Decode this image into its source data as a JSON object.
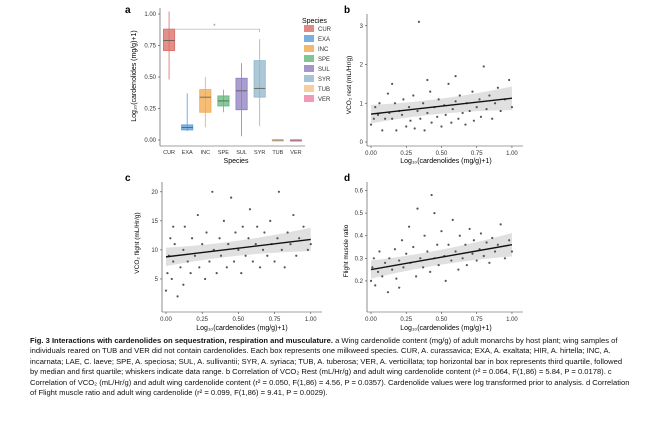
{
  "chart_data": [
    {
      "panel": "a",
      "type": "box",
      "xlabel": "Species",
      "ylabel": "Log10(cardenolides (mg/g)+1)",
      "ylim": [
        0,
        1.0
      ],
      "yticks": [
        "0.00",
        "0.25",
        "0.50",
        "0.75",
        "1.00"
      ],
      "categories": [
        "CUR",
        "EXA",
        "INC",
        "SPE",
        "SUL",
        "SYR",
        "TUB",
        "VER"
      ],
      "legend_title": "Species",
      "legend_position": "right",
      "colors": [
        "#d96b63",
        "#5b9bd5",
        "#f0a84a",
        "#5fb878",
        "#8d7cc0",
        "#8fb6c9",
        "#f2c38a",
        "#ef7fa8"
      ],
      "boxes": [
        {
          "min": 0.48,
          "q1": 0.71,
          "median": 0.79,
          "q3": 0.88,
          "max": 1.02
        },
        {
          "min": 0.07,
          "q1": 0.08,
          "median": 0.1,
          "q3": 0.12,
          "max": 0.37
        },
        {
          "min": 0.1,
          "q1": 0.22,
          "median": 0.34,
          "q3": 0.4,
          "max": 0.5
        },
        {
          "min": 0.22,
          "q1": 0.27,
          "median": 0.31,
          "q3": 0.35,
          "max": 0.4
        },
        {
          "min": 0.03,
          "q1": 0.24,
          "median": 0.39,
          "q3": 0.49,
          "max": 0.61
        },
        {
          "min": 0.11,
          "q1": 0.34,
          "median": 0.41,
          "q3": 0.63,
          "max": 0.8
        },
        {
          "min": 0.0,
          "q1": 0.0,
          "median": 0.0,
          "q3": 0.0,
          "max": 0.0
        },
        {
          "min": 0.0,
          "q1": 0.0,
          "median": 0.0,
          "q3": 0.0,
          "max": 0.0
        }
      ],
      "significance_bracket": {
        "from": "CUR",
        "to": "SYR",
        "y": 0.88,
        "label": "*"
      }
    },
    {
      "panel": "b",
      "type": "scatter",
      "xlabel": "Log10(cardenolides (mg/g)+1)",
      "ylabel": "VCO2 rest (mL/Hr/g)",
      "xlim": [
        0,
        1.05
      ],
      "ylim": [
        0,
        3.2
      ],
      "xticks": [
        "0.00",
        "0.25",
        "0.50",
        "0.75",
        "1.00"
      ],
      "yticks": [
        "0",
        "1",
        "2",
        "3"
      ],
      "trend": {
        "x": [
          0,
          1.0
        ],
        "y": [
          0.72,
          1.13
        ]
      },
      "points": [
        [
          0.0,
          0.45
        ],
        [
          0.02,
          0.6
        ],
        [
          0.03,
          0.9
        ],
        [
          0.05,
          0.7
        ],
        [
          0.06,
          1.0
        ],
        [
          0.08,
          0.3
        ],
        [
          0.1,
          0.6
        ],
        [
          0.12,
          1.25
        ],
        [
          0.13,
          0.75
        ],
        [
          0.15,
          0.6
        ],
        [
          0.17,
          1.0
        ],
        [
          0.18,
          0.3
        ],
        [
          0.2,
          0.8
        ],
        [
          0.22,
          0.7
        ],
        [
          0.23,
          1.1
        ],
        [
          0.25,
          0.4
        ],
        [
          0.27,
          0.9
        ],
        [
          0.28,
          0.55
        ],
        [
          0.3,
          1.2
        ],
        [
          0.31,
          0.35
        ],
        [
          0.33,
          0.8
        ],
        [
          0.34,
          3.1
        ],
        [
          0.35,
          0.6
        ],
        [
          0.37,
          1.0
        ],
        [
          0.38,
          0.3
        ],
        [
          0.4,
          0.75
        ],
        [
          0.42,
          1.3
        ],
        [
          0.43,
          0.5
        ],
        [
          0.45,
          0.9
        ],
        [
          0.47,
          0.65
        ],
        [
          0.48,
          1.1
        ],
        [
          0.5,
          0.4
        ],
        [
          0.52,
          0.95
        ],
        [
          0.53,
          0.7
        ],
        [
          0.55,
          1.5
        ],
        [
          0.57,
          0.5
        ],
        [
          0.58,
          0.85
        ],
        [
          0.6,
          1.05
        ],
        [
          0.62,
          0.6
        ],
        [
          0.63,
          1.2
        ],
        [
          0.65,
          0.75
        ],
        [
          0.67,
          0.45
        ],
        [
          0.68,
          1.0
        ],
        [
          0.7,
          0.8
        ],
        [
          0.72,
          1.3
        ],
        [
          0.73,
          0.55
        ],
        [
          0.75,
          0.9
        ],
        [
          0.77,
          1.1
        ],
        [
          0.78,
          0.65
        ],
        [
          0.8,
          1.95
        ],
        [
          0.82,
          0.85
        ],
        [
          0.84,
          1.2
        ],
        [
          0.86,
          0.6
        ],
        [
          0.88,
          1.0
        ],
        [
          0.9,
          1.4
        ],
        [
          0.92,
          0.8
        ],
        [
          0.95,
          1.1
        ],
        [
          0.98,
          1.6
        ],
        [
          1.0,
          0.9
        ],
        [
          0.15,
          1.5
        ],
        [
          0.6,
          1.7
        ],
        [
          0.4,
          1.6
        ]
      ]
    },
    {
      "panel": "c",
      "type": "scatter",
      "xlabel": "Log10(cardenolides (mg/g)+1)",
      "ylabel": "VCO2 flight (mL/Hr/g)",
      "xlim": [
        0,
        1.05
      ],
      "ylim": [
        0,
        21
      ],
      "xticks": [
        "0.00",
        "0.25",
        "0.50",
        "0.75",
        "1.00"
      ],
      "yticks": [
        "5",
        "10",
        "15",
        "20"
      ],
      "trend": {
        "x": [
          0,
          1.0
        ],
        "y": [
          8.8,
          11.8
        ]
      },
      "points": [
        [
          0.0,
          3
        ],
        [
          0.01,
          6
        ],
        [
          0.02,
          9
        ],
        [
          0.03,
          12
        ],
        [
          0.04,
          5
        ],
        [
          0.05,
          8
        ],
        [
          0.06,
          11
        ],
        [
          0.08,
          2
        ],
        [
          0.1,
          7
        ],
        [
          0.12,
          10
        ],
        [
          0.13,
          14
        ],
        [
          0.15,
          8
        ],
        [
          0.17,
          6
        ],
        [
          0.18,
          12
        ],
        [
          0.2,
          9
        ],
        [
          0.22,
          16
        ],
        [
          0.23,
          7
        ],
        [
          0.25,
          11
        ],
        [
          0.27,
          5
        ],
        [
          0.28,
          13
        ],
        [
          0.3,
          8
        ],
        [
          0.32,
          20
        ],
        [
          0.33,
          10
        ],
        [
          0.35,
          6
        ],
        [
          0.37,
          12
        ],
        [
          0.38,
          9
        ],
        [
          0.4,
          15
        ],
        [
          0.42,
          7
        ],
        [
          0.43,
          11
        ],
        [
          0.45,
          19
        ],
        [
          0.47,
          8
        ],
        [
          0.48,
          13
        ],
        [
          0.5,
          10
        ],
        [
          0.52,
          6
        ],
        [
          0.53,
          14
        ],
        [
          0.55,
          9
        ],
        [
          0.57,
          12
        ],
        [
          0.58,
          17
        ],
        [
          0.6,
          8
        ],
        [
          0.62,
          11
        ],
        [
          0.63,
          14
        ],
        [
          0.65,
          7
        ],
        [
          0.67,
          10
        ],
        [
          0.68,
          13
        ],
        [
          0.7,
          9
        ],
        [
          0.72,
          15
        ],
        [
          0.73,
          11
        ],
        [
          0.75,
          8
        ],
        [
          0.77,
          12
        ],
        [
          0.78,
          20
        ],
        [
          0.8,
          10
        ],
        [
          0.82,
          7
        ],
        [
          0.84,
          13
        ],
        [
          0.86,
          11
        ],
        [
          0.88,
          16
        ],
        [
          0.9,
          9
        ],
        [
          0.92,
          12
        ],
        [
          0.95,
          14
        ],
        [
          0.98,
          10
        ],
        [
          1.0,
          11
        ],
        [
          0.05,
          14
        ],
        [
          0.12,
          4
        ]
      ]
    },
    {
      "panel": "d",
      "type": "scatter",
      "xlabel": "Log10(cardenolides (mg/g)+1)",
      "ylabel": "Flight muscle ratio",
      "xlim": [
        0,
        1.05
      ],
      "ylim": [
        0.08,
        0.62
      ],
      "xticks": [
        "0.00",
        "0.25",
        "0.50",
        "0.75",
        "1.00"
      ],
      "yticks": [
        "0.2",
        "0.3",
        "0.4",
        "0.5",
        "0.6"
      ],
      "trend": {
        "x": [
          0,
          1.0
        ],
        "y": [
          0.25,
          0.36
        ]
      },
      "points": [
        [
          0.0,
          0.2
        ],
        [
          0.01,
          0.26
        ],
        [
          0.02,
          0.3
        ],
        [
          0.03,
          0.18
        ],
        [
          0.05,
          0.24
        ],
        [
          0.06,
          0.33
        ],
        [
          0.08,
          0.22
        ],
        [
          0.1,
          0.28
        ],
        [
          0.12,
          0.15
        ],
        [
          0.13,
          0.3
        ],
        [
          0.15,
          0.25
        ],
        [
          0.17,
          0.34
        ],
        [
          0.18,
          0.21
        ],
        [
          0.2,
          0.29
        ],
        [
          0.22,
          0.38
        ],
        [
          0.23,
          0.26
        ],
        [
          0.25,
          0.32
        ],
        [
          0.27,
          0.44
        ],
        [
          0.28,
          0.28
        ],
        [
          0.3,
          0.35
        ],
        [
          0.32,
          0.22
        ],
        [
          0.33,
          0.52
        ],
        [
          0.35,
          0.3
        ],
        [
          0.37,
          0.26
        ],
        [
          0.38,
          0.4
        ],
        [
          0.4,
          0.33
        ],
        [
          0.42,
          0.24
        ],
        [
          0.43,
          0.58
        ],
        [
          0.45,
          0.3
        ],
        [
          0.47,
          0.36
        ],
        [
          0.48,
          0.27
        ],
        [
          0.5,
          0.42
        ],
        [
          0.52,
          0.31
        ],
        [
          0.53,
          0.2
        ],
        [
          0.55,
          0.36
        ],
        [
          0.57,
          0.29
        ],
        [
          0.58,
          0.47
        ],
        [
          0.6,
          0.33
        ],
        [
          0.62,
          0.25
        ],
        [
          0.63,
          0.4
        ],
        [
          0.65,
          0.3
        ],
        [
          0.67,
          0.36
        ],
        [
          0.68,
          0.27
        ],
        [
          0.7,
          0.43
        ],
        [
          0.72,
          0.32
        ],
        [
          0.73,
          0.38
        ],
        [
          0.75,
          0.29
        ],
        [
          0.77,
          0.34
        ],
        [
          0.78,
          0.41
        ],
        [
          0.8,
          0.31
        ],
        [
          0.82,
          0.37
        ],
        [
          0.84,
          0.28
        ],
        [
          0.86,
          0.39
        ],
        [
          0.88,
          0.33
        ],
        [
          0.9,
          0.36
        ],
        [
          0.92,
          0.45
        ],
        [
          0.95,
          0.3
        ],
        [
          0.98,
          0.38
        ],
        [
          1.0,
          0.33
        ],
        [
          0.2,
          0.17
        ],
        [
          0.45,
          0.5
        ]
      ]
    }
  ],
  "panels": {
    "a": {
      "letter": "a",
      "ylabel": "Log₁₀(cardenolides (mg/g)+1)",
      "xlabel": "Species",
      "legend_title": "Species"
    },
    "b": {
      "letter": "b",
      "ylabel": "VCO₂ rest (mL/Hr/g)",
      "xlabel": "Log₁₀(cardenolides (mg/g)+1)"
    },
    "c": {
      "letter": "c",
      "ylabel": "VCO₂ flight (mL/Hr/g)",
      "xlabel": "Log₁₀(cardenolides (mg/g)+1)"
    },
    "d": {
      "letter": "d",
      "ylabel": "Flight muscle ratio",
      "xlabel": "Log₁₀(cardenolides (mg/g)+1)"
    }
  },
  "caption": {
    "title": "Fig. 3 Interactions with cardenolides on sequestration, respiration and musculature.",
    "body": " a Wing cardenolide content (mg/g) of adult monarchs by host plant; wing samples of individuals reared on TUB and VER did not contain cardenolides. Each box represents one milkweed species. CUR, A. curassavica; EXA, A. exaltata; HIR, A. hirtella; INC, A. incarnata; LAE, C. laeve; SPE, A. speciosa; SUL, A. sullivantii; SYR, A. syriaca; TUB, A. tuberosa; VER, A. verticillata; top horizontal bar in box represents third quartile, followed by median and first quartile; whiskers indicate data range. b Correlation of VCO₂ Rest (mL/Hr/g) and adult wing cardenolide content (r² = 0.064, F(1,86) = 5.84, P = 0.0178). c Correlation of VCO₂ (mL/Hr/g) and adult wing cardenolide content (r² = 0.050, F(1,86) = 4.56, P = 0.0357). Cardenolide values were log transformed prior to analysis. d Correlation of Flight muscle ratio and adult wing cardenolide (r² = 0.099, F(1,86) = 9.41, P = 0.0029)."
  }
}
